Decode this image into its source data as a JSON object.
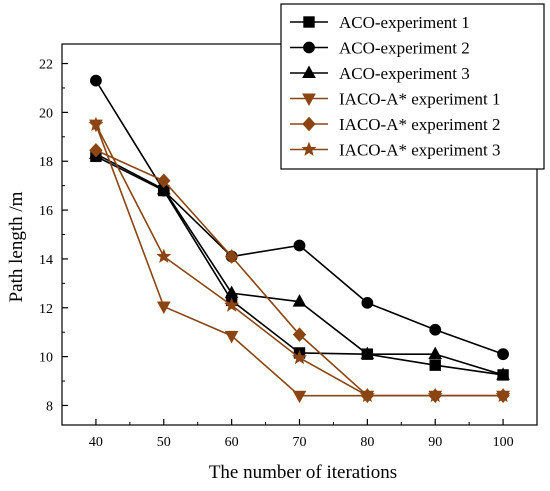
{
  "chart_data": {
    "type": "line",
    "title": "",
    "xlabel": "The number of iterations",
    "ylabel": "Path length /m",
    "x": [
      40,
      50,
      60,
      70,
      80,
      90,
      100
    ],
    "x_ticks": [
      "40",
      "50",
      "60",
      "70",
      "80",
      "90",
      "100"
    ],
    "y_ticks": [
      "8",
      "10",
      "12",
      "14",
      "16",
      "18",
      "20",
      "22"
    ],
    "xlim": [
      35,
      105
    ],
    "ylim": [
      7.2,
      22.8
    ],
    "grid": false,
    "legend_position": "top-right",
    "series": [
      {
        "name": "ACO-experiment 1",
        "marker": "square",
        "color": "#000000",
        "values": [
          18.2,
          16.8,
          12.3,
          10.15,
          10.1,
          9.65,
          9.25
        ]
      },
      {
        "name": "ACO-experiment 2",
        "marker": "circle",
        "color": "#000000",
        "values": [
          21.3,
          16.8,
          14.1,
          14.55,
          12.2,
          11.1,
          10.1
        ]
      },
      {
        "name": "ACO-experiment 3",
        "marker": "triangle-up",
        "color": "#000000",
        "values": [
          18.3,
          16.85,
          12.6,
          12.25,
          10.1,
          10.1,
          9.25
        ]
      },
      {
        "name": "IACO-A* experiment 1",
        "marker": "triangle-down",
        "color": "#8b4513",
        "values": [
          19.5,
          12.05,
          10.85,
          8.4,
          8.4,
          8.4,
          8.4
        ]
      },
      {
        "name": "IACO-A* experiment 2",
        "marker": "diamond",
        "color": "#8b4513",
        "values": [
          18.45,
          17.2,
          14.1,
          10.9,
          8.4,
          8.4,
          8.4
        ]
      },
      {
        "name": "IACO-A* experiment 3",
        "marker": "star",
        "color": "#8b4513",
        "values": [
          19.5,
          14.1,
          12.1,
          9.95,
          8.4,
          8.4,
          8.4
        ]
      }
    ]
  }
}
